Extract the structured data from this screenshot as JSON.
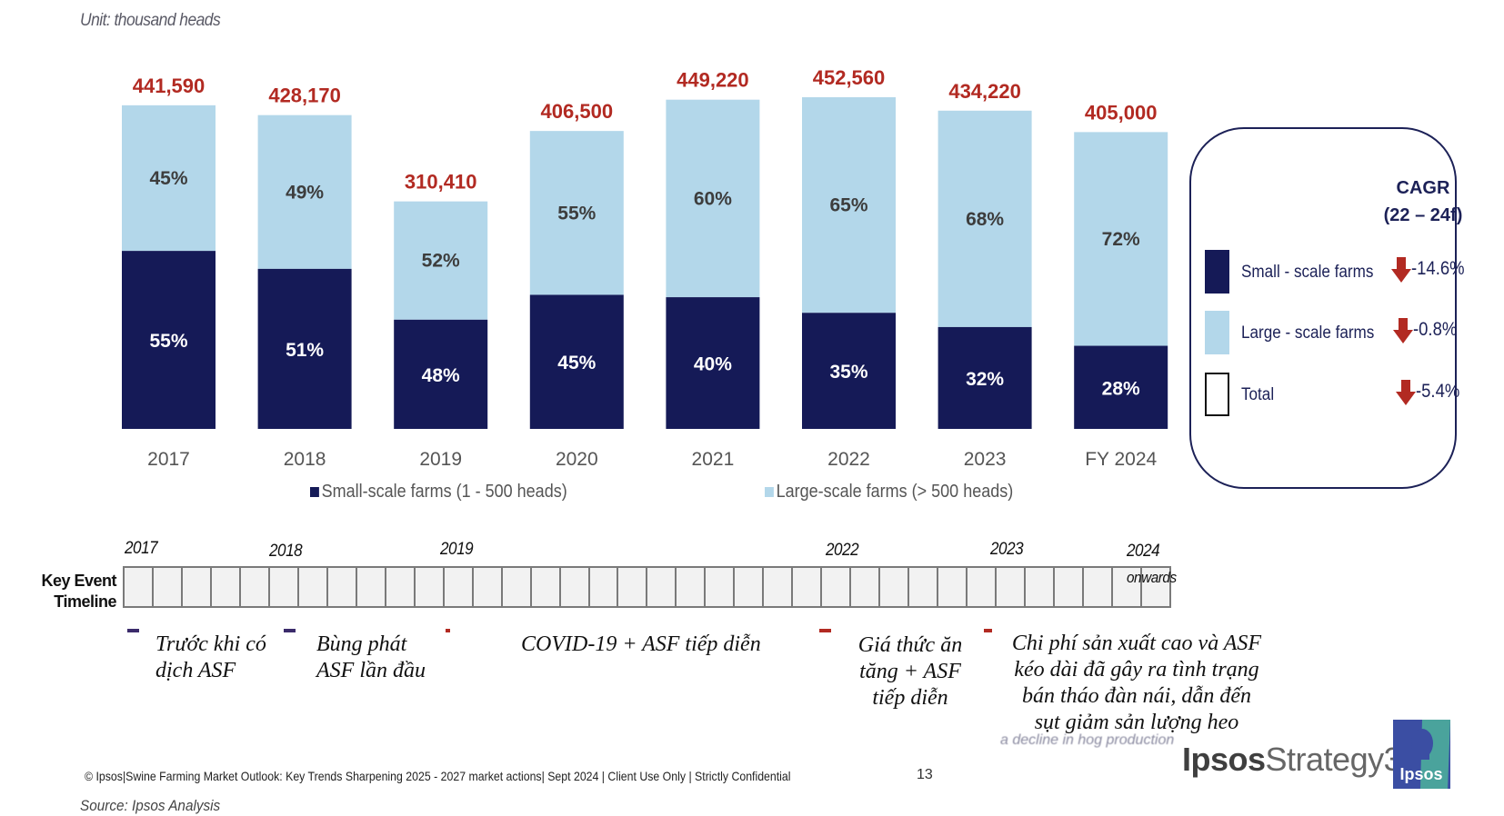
{
  "unit_label": "Unit: thousand heads",
  "colors": {
    "small_scale": "#151a57",
    "large_scale": "#b3d7ea",
    "total_label": "#b22a22",
    "arrow_down": "#b22a22",
    "box_border": "#1c2157",
    "marker_purple": "#3b2b6b",
    "marker_red": "#b22a22"
  },
  "chart_data": {
    "type": "bar",
    "stacked": true,
    "title": "",
    "xlabel": "",
    "ylabel": "Unit: thousand heads",
    "categories": [
      "2017",
      "2018",
      "2019",
      "2020",
      "2021",
      "2022",
      "2023",
      "FY 2024"
    ],
    "totals": [
      441590,
      428170,
      310410,
      406500,
      449220,
      452560,
      434220,
      405000
    ],
    "total_labels": [
      "441,590",
      "428,170",
      "310,410",
      "406,500",
      "449,220",
      "452,560",
      "434,220",
      "405,000"
    ],
    "series": [
      {
        "name": "Small-scale farms (1 - 500 heads)",
        "share_percent": [
          55,
          51,
          48,
          45,
          40,
          35,
          32,
          28
        ]
      },
      {
        "name": "Large-scale farms (> 500 heads)",
        "share_percent": [
          45,
          49,
          52,
          55,
          60,
          65,
          68,
          72
        ]
      }
    ],
    "ylim": [
      0,
      452560
    ],
    "grid": false,
    "legend_position": "bottom"
  },
  "legend": {
    "small": "Small-scale farms (1 - 500 heads)",
    "large": "Large-scale farms (> 500 heads)"
  },
  "cagr": {
    "title_line1": "CAGR",
    "title_line2": "(22 – 24f)",
    "rows": [
      {
        "label": "Small - scale farms",
        "value": "-14.6%",
        "icon": "arrow-down-icon"
      },
      {
        "label": "Large - scale farms",
        "value": "-0.8%",
        "icon": "arrow-down-icon"
      },
      {
        "label": "Total",
        "value": "-5.4%",
        "icon": "arrow-down-icon"
      }
    ]
  },
  "timeline": {
    "heading_line1": "Key Event",
    "heading_line2": "Timeline",
    "cells": 36,
    "years": [
      "2017",
      "2018",
      "2019",
      "2022",
      "2023",
      "2024"
    ],
    "year_suffix_last": "onwards",
    "events": [
      {
        "line1": "Trước khi có",
        "line2": "dịch ASF",
        "line3": "",
        "line4": ""
      },
      {
        "line1": "Bùng phát",
        "line2": "ASF lần đầu",
        "line3": "",
        "line4": ""
      },
      {
        "line1": "COVID-19 + ASF tiếp diễn",
        "line2": "",
        "line3": "",
        "line4": ""
      },
      {
        "line1": "Giá thức ăn",
        "line2": "tăng + ASF",
        "line3": "tiếp diễn",
        "line4": ""
      },
      {
        "line1": "Chi phí sản xuất cao và ASF",
        "line2": "kéo dài đã gây ra tình trạng",
        "line3": "bán tháo đàn nái, dẫn đến",
        "line4": "sụt giảm sản lượng heo"
      }
    ],
    "faded_text": "a decline in hog production"
  },
  "footer": {
    "copyright": "© Ipsos|Swine Farming Market Outlook: Key Trends Sharpening 2025 - 2027 market actions| Sept 2024 | Client Use Only | Strictly Confidential",
    "page_number": "13",
    "source": "Source: Ipsos Analysis",
    "brand_bold": "Ipsos",
    "brand_rest": "Strategy3",
    "logo_text": "Ipsos"
  }
}
